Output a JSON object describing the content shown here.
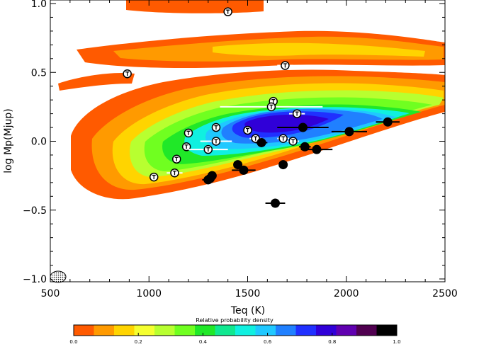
{
  "chart_data": {
    "type": "scatter",
    "title": "",
    "xlabel": "Teq (K)",
    "ylabel": "log Mp(Mjup)",
    "xlim": [
      500,
      2500
    ],
    "ylim": [
      -1.05,
      1.0
    ],
    "xticks": [
      500,
      1000,
      1500,
      2000,
      2500
    ],
    "xtick_labels": [
      "500",
      "1000",
      "1500",
      "2000",
      "2500"
    ],
    "yticks": [
      1.0,
      0.5,
      0.0,
      -0.5,
      -1.0
    ],
    "ytick_labels": [
      "1.0",
      "0.5",
      "0.0",
      "−0.5",
      "−1.0"
    ],
    "grid": false,
    "density_background": {
      "description_label": "Relative probability density",
      "colors": [
        "#ff5a00",
        "#ff9a00",
        "#ffd400",
        "#f5ff30",
        "#b8ff30",
        "#70ff20",
        "#20e828",
        "#10e890",
        "#10f0e0",
        "#20c8ff",
        "#2080ff",
        "#2030ff",
        "#3000d8",
        "#6000b0",
        "#500050",
        "#000000"
      ],
      "colorbar_ticks": [
        "0.0",
        "0.2",
        "0.4",
        "0.6",
        "0.8",
        "1.0"
      ]
    },
    "series": [
      {
        "marker": "open-circle",
        "points": [
          {
            "x": 1400,
            "y": 0.94,
            "xerr": 20
          },
          {
            "x": 890,
            "y": 0.49,
            "xerr": 15
          },
          {
            "x": 1690,
            "y": 0.55,
            "xerr": 40
          },
          {
            "x": 1630,
            "y": 0.29,
            "xerr": 20
          },
          {
            "x": 1620,
            "y": 0.25,
            "xerr": 260
          },
          {
            "x": 1750,
            "y": 0.2,
            "xerr": 40
          },
          {
            "x": 1340,
            "y": 0.1,
            "xerr": 20
          },
          {
            "x": 1500,
            "y": 0.08,
            "xerr": 20
          },
          {
            "x": 1200,
            "y": 0.06,
            "xerr": 20
          },
          {
            "x": 1540,
            "y": 0.02,
            "xerr": 30
          },
          {
            "x": 1680,
            "y": 0.02,
            "xerr": 30
          },
          {
            "x": 1730,
            "y": 0.0,
            "xerr": 30
          },
          {
            "x": 1340,
            "y": 0.0,
            "xerr": 80
          },
          {
            "x": 1190,
            "y": -0.04,
            "xerr": 20
          },
          {
            "x": 1300,
            "y": -0.06,
            "xerr": 100
          },
          {
            "x": 1140,
            "y": -0.13,
            "xerr": 20
          },
          {
            "x": 1130,
            "y": -0.23,
            "xerr": 40
          },
          {
            "x": 1025,
            "y": -0.26,
            "xerr": 20
          }
        ]
      },
      {
        "marker": "filled-circle",
        "points": [
          {
            "x": 1780,
            "y": 0.1,
            "xerr": 130
          },
          {
            "x": 2210,
            "y": 0.14,
            "xerr": 60
          },
          {
            "x": 2015,
            "y": 0.07,
            "xerr": 90
          },
          {
            "x": 1570,
            "y": -0.01,
            "xerr": 30
          },
          {
            "x": 1790,
            "y": -0.04,
            "xerr": 30
          },
          {
            "x": 1850,
            "y": -0.06,
            "xerr": 80
          },
          {
            "x": 1450,
            "y": -0.17,
            "xerr": 20
          },
          {
            "x": 1680,
            "y": -0.17,
            "xerr": 20
          },
          {
            "x": 1480,
            "y": -0.21,
            "xerr": 60
          },
          {
            "x": 1320,
            "y": -0.25,
            "xerr": 20
          },
          {
            "x": 1310,
            "y": -0.27,
            "xerr": 20
          },
          {
            "x": 1300,
            "y": -0.28,
            "xerr": 30
          },
          {
            "x": 1640,
            "y": -0.45,
            "xerr": 50
          }
        ]
      }
    ]
  }
}
